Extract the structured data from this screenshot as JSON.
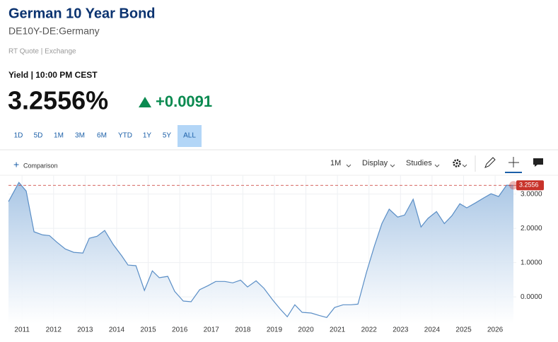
{
  "header": {
    "title": "German 10 Year Bond",
    "symbol": "DE10Y-DE:Germany",
    "source": "RT Quote | Exchange"
  },
  "quote": {
    "label": "Yield | 10:00 PM CEST",
    "last": "3.2556%",
    "change": "+0.0091"
  },
  "ranges": [
    "1D",
    "5D",
    "1M",
    "3M",
    "6M",
    "YTD",
    "1Y",
    "5Y",
    "ALL"
  ],
  "toolbar": {
    "comparison": "Comparison",
    "interval": "1M",
    "display": "Display",
    "studies": "Studies"
  },
  "chart_data": {
    "type": "area",
    "series": [
      {
        "color": "#5a8ec6",
        "x": [
          2010.57,
          2010.9,
          2011.13,
          2011.38,
          2011.65,
          2011.87,
          2012.1,
          2012.37,
          2012.64,
          2012.93,
          2013.13,
          2013.38,
          2013.62,
          2013.89,
          2014.16,
          2014.36,
          2014.61,
          2014.88,
          2015.13,
          2015.35,
          2015.62,
          2015.84,
          2016.11,
          2016.36,
          2016.63,
          2016.9,
          2017.14,
          2017.43,
          2017.68,
          2017.93,
          2018.15,
          2018.42,
          2018.67,
          2018.94,
          2019.18,
          2019.41,
          2019.65,
          2019.88,
          2020.17,
          2020.42,
          2020.66,
          2020.91,
          2021.18,
          2021.43,
          2021.65,
          2021.92,
          2022.17,
          2022.41,
          2022.64,
          2022.91,
          2023.13,
          2023.4,
          2023.65,
          2023.87,
          2024.14,
          2024.39,
          2024.63,
          2024.88,
          2025.1,
          2025.37,
          2025.64,
          2025.87,
          2026.11,
          2026.36,
          2026.58
        ],
        "values": [
          2.78,
          3.34,
          3.09,
          1.9,
          1.81,
          1.79,
          1.6,
          1.4,
          1.3,
          1.28,
          1.71,
          1.77,
          1.94,
          1.53,
          1.2,
          0.93,
          0.91,
          0.19,
          0.76,
          0.56,
          0.6,
          0.16,
          -0.12,
          -0.14,
          0.21,
          0.33,
          0.45,
          0.45,
          0.41,
          0.49,
          0.29,
          0.47,
          0.25,
          -0.08,
          -0.35,
          -0.58,
          -0.23,
          -0.45,
          -0.47,
          -0.54,
          -0.6,
          -0.31,
          -0.23,
          -0.23,
          -0.21,
          0.72,
          1.48,
          2.14,
          2.56,
          2.33,
          2.39,
          2.85,
          2.04,
          2.29,
          2.49,
          2.14,
          2.37,
          2.72,
          2.6,
          2.74,
          2.89,
          3.01,
          2.93,
          3.26,
          3.2556
        ]
      }
    ],
    "current_value": 3.2556,
    "current_color": "#c8322a",
    "xlim": [
      2010.57,
      2026.67
    ],
    "xticks": [
      2011,
      2012,
      2013,
      2014,
      2015,
      2016,
      2017,
      2018,
      2019,
      2020,
      2021,
      2022,
      2023,
      2024,
      2025,
      2026
    ],
    "ylim": [
      -0.78,
      3.55
    ],
    "yticks": [
      {
        "value": 0,
        "label": "0.0000"
      },
      {
        "value": 1,
        "label": "1.0000"
      },
      {
        "value": 2,
        "label": "2.0000"
      },
      {
        "value": 3,
        "label": "3.0000"
      }
    ],
    "grid": true
  }
}
